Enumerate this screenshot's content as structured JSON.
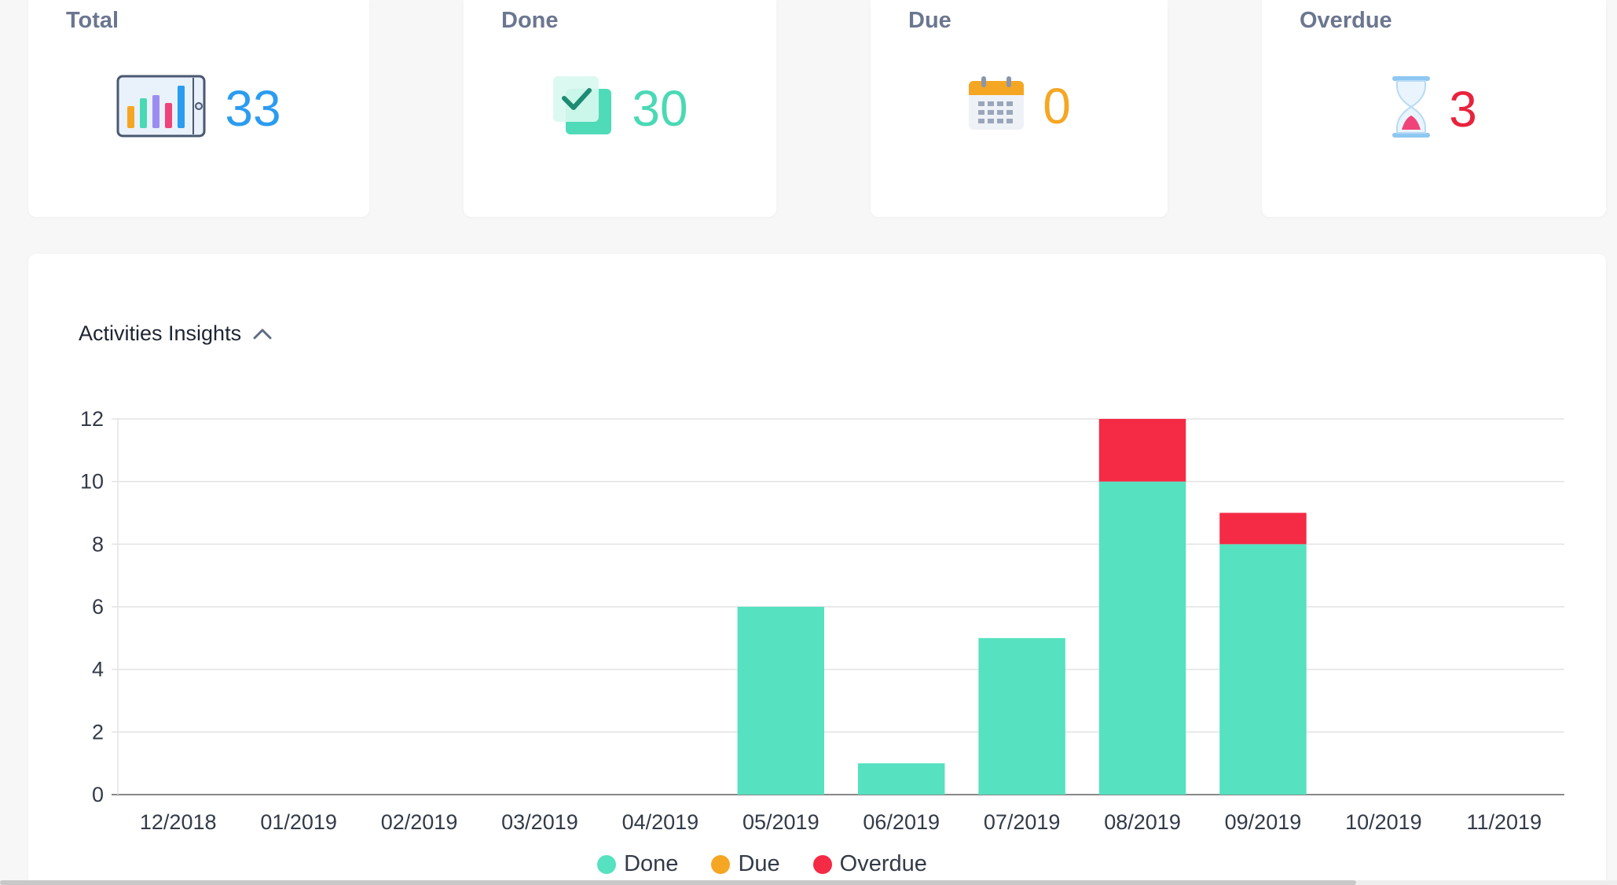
{
  "stats": [
    {
      "label": "Total",
      "value": "33",
      "color": "#2b9cf0",
      "icon": "bar-chart-icon"
    },
    {
      "label": "Done",
      "value": "30",
      "color": "#4ad9b5",
      "icon": "check-icon"
    },
    {
      "label": "Due",
      "value": "0",
      "color": "#f5a623",
      "icon": "calendar-icon"
    },
    {
      "label": "Overdue",
      "value": "3",
      "color": "#e8233c",
      "icon": "hourglass-icon"
    }
  ],
  "insights": {
    "title": "Activities Insights",
    "toggle_icon": "chevron-up-icon"
  },
  "chart_data": {
    "type": "bar",
    "stacked": true,
    "categories": [
      "12/2018",
      "01/2019",
      "02/2019",
      "03/2019",
      "04/2019",
      "05/2019",
      "06/2019",
      "07/2019",
      "08/2019",
      "09/2019",
      "10/2019",
      "11/2019"
    ],
    "series": [
      {
        "name": "Done",
        "color": "#56e1c0",
        "values": [
          0,
          0,
          0,
          0,
          0,
          6,
          1,
          5,
          10,
          8,
          0,
          0
        ]
      },
      {
        "name": "Due",
        "color": "#f5a623",
        "values": [
          0,
          0,
          0,
          0,
          0,
          0,
          0,
          0,
          0,
          0,
          0,
          0
        ]
      },
      {
        "name": "Overdue",
        "color": "#f52a45",
        "values": [
          0,
          0,
          0,
          0,
          0,
          0,
          0,
          0,
          2,
          1,
          0,
          0
        ]
      }
    ],
    "yticks": [
      "0",
      "2",
      "4",
      "6",
      "8",
      "10",
      "12"
    ],
    "ylim": [
      0,
      12
    ],
    "grid": true,
    "legend": "bottom-center"
  }
}
